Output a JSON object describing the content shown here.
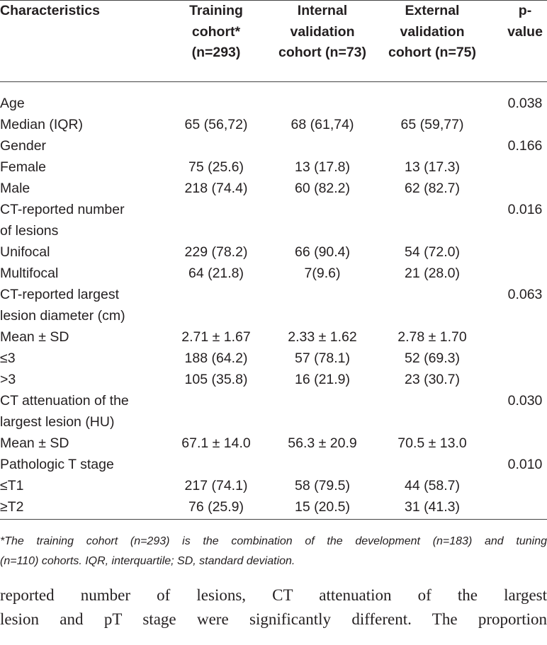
{
  "table": {
    "header": [
      [
        "Characteristics"
      ],
      [
        "Training",
        "cohort*",
        "(n=293)"
      ],
      [
        "Internal",
        "validation",
        "cohort (n=73)"
      ],
      [
        "External",
        "validation",
        "cohort (n=75)"
      ],
      [
        "p-",
        "value"
      ]
    ],
    "rows": [
      [
        [
          "Age"
        ],
        null,
        null,
        null,
        "0.038"
      ],
      [
        [
          "Median (IQR)"
        ],
        "65 (56,72)",
        "68 (61,74)",
        "65 (59,77)",
        null
      ],
      [
        [
          "Gender"
        ],
        null,
        null,
        null,
        "0.166"
      ],
      [
        [
          "Female"
        ],
        "75 (25.6)",
        "13 (17.8)",
        "13 (17.3)",
        null
      ],
      [
        [
          "Male"
        ],
        "218 (74.4)",
        "60 (82.2)",
        "62 (82.7)",
        null
      ],
      [
        [
          "CT-reported number",
          "of lesions"
        ],
        null,
        null,
        null,
        "0.016"
      ],
      [
        [
          "Unifocal"
        ],
        "229 (78.2)",
        "66 (90.4)",
        "54 (72.0)",
        null
      ],
      [
        [
          "Multifocal"
        ],
        "64 (21.8)",
        "7(9.6)",
        "21 (28.0)",
        null
      ],
      [
        [
          "CT-reported largest",
          "lesion diameter (cm)"
        ],
        null,
        null,
        null,
        "0.063"
      ],
      [
        [
          "Mean ± SD"
        ],
        "2.71 ± 1.67",
        "2.33 ± 1.62",
        "2.78 ± 1.70",
        null
      ],
      [
        [
          "≤3"
        ],
        "188 (64.2)",
        "57 (78.1)",
        "52 (69.3)",
        null
      ],
      [
        [
          ">3"
        ],
        "105 (35.8)",
        "16 (21.9)",
        "23 (30.7)",
        null
      ],
      [
        [
          "CT attenuation of the",
          "largest lesion (HU)"
        ],
        null,
        null,
        null,
        "0.030"
      ],
      [
        [
          "Mean ± SD"
        ],
        "67.1 ± 14.0",
        "56.3 ± 20.9",
        "70.5 ± 13.0",
        null
      ],
      [
        [
          "Pathologic T stage"
        ],
        null,
        null,
        null,
        "0.010"
      ],
      [
        [
          "≤T1"
        ],
        "217 (74.1)",
        "58 (79.5)",
        "44 (58.7)",
        null
      ],
      [
        [
          "≥T2"
        ],
        "76 (25.9)",
        "15 (20.5)",
        "31 (41.3)",
        null
      ]
    ],
    "footnote": [
      "*The training cohort (n=293) is the combination of the development (n=183) and tuning",
      "(n=110) cohorts. IQR, interquartile; SD, standard deviation."
    ]
  },
  "paragraph": [
    "reported number of lesions, CT attenuation of the largest",
    "lesion and pT stage were significantly different. The proportion"
  ]
}
